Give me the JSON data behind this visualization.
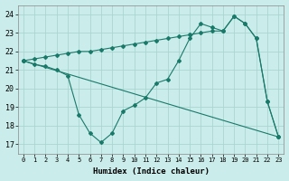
{
  "xlabel": "Humidex (Indice chaleur)",
  "xlim": [
    -0.5,
    23.5
  ],
  "ylim": [
    16.5,
    24.5
  ],
  "yticks": [
    17,
    18,
    19,
    20,
    21,
    22,
    23,
    24
  ],
  "xticks": [
    0,
    1,
    2,
    3,
    4,
    5,
    6,
    7,
    8,
    9,
    10,
    11,
    12,
    13,
    14,
    15,
    16,
    17,
    18,
    19,
    20,
    21,
    22,
    23
  ],
  "xtick_labels": [
    "0",
    "1",
    "2",
    "3",
    "4",
    "5",
    "6",
    "7",
    "8",
    "9",
    "10",
    "11",
    "12",
    "13",
    "14",
    "15",
    "16",
    "17",
    "18",
    "19",
    "20",
    "21",
    "22",
    "23"
  ],
  "background_color": "#caecea",
  "line_color": "#1a7a6a",
  "grid_color": "#aad6d2",
  "line1_x": [
    0,
    1,
    2,
    3,
    4,
    5,
    6,
    7,
    8,
    9,
    10,
    11,
    12,
    13,
    14,
    15,
    16,
    17,
    18,
    19,
    20,
    21,
    22,
    23
  ],
  "line1_y": [
    21.5,
    21.3,
    21.2,
    21.0,
    20.7,
    18.6,
    17.6,
    17.1,
    17.6,
    18.8,
    19.1,
    19.5,
    20.3,
    20.5,
    21.5,
    22.7,
    23.5,
    23.3,
    23.1,
    23.9,
    23.5,
    22.7,
    19.3,
    17.4
  ],
  "line2_x": [
    0,
    23
  ],
  "line2_y": [
    21.5,
    17.4
  ],
  "line3_x": [
    0,
    1,
    2,
    3,
    4,
    5,
    6,
    7,
    8,
    9,
    10,
    11,
    12,
    13,
    14,
    15,
    16,
    17,
    18,
    19,
    20,
    21,
    22,
    23
  ],
  "line3_y": [
    21.5,
    21.6,
    21.7,
    21.8,
    21.9,
    22.0,
    22.0,
    22.1,
    22.2,
    22.3,
    22.4,
    22.5,
    22.6,
    22.7,
    22.8,
    22.9,
    23.0,
    23.1,
    23.1,
    23.9,
    23.5,
    22.7,
    19.3,
    17.4
  ]
}
